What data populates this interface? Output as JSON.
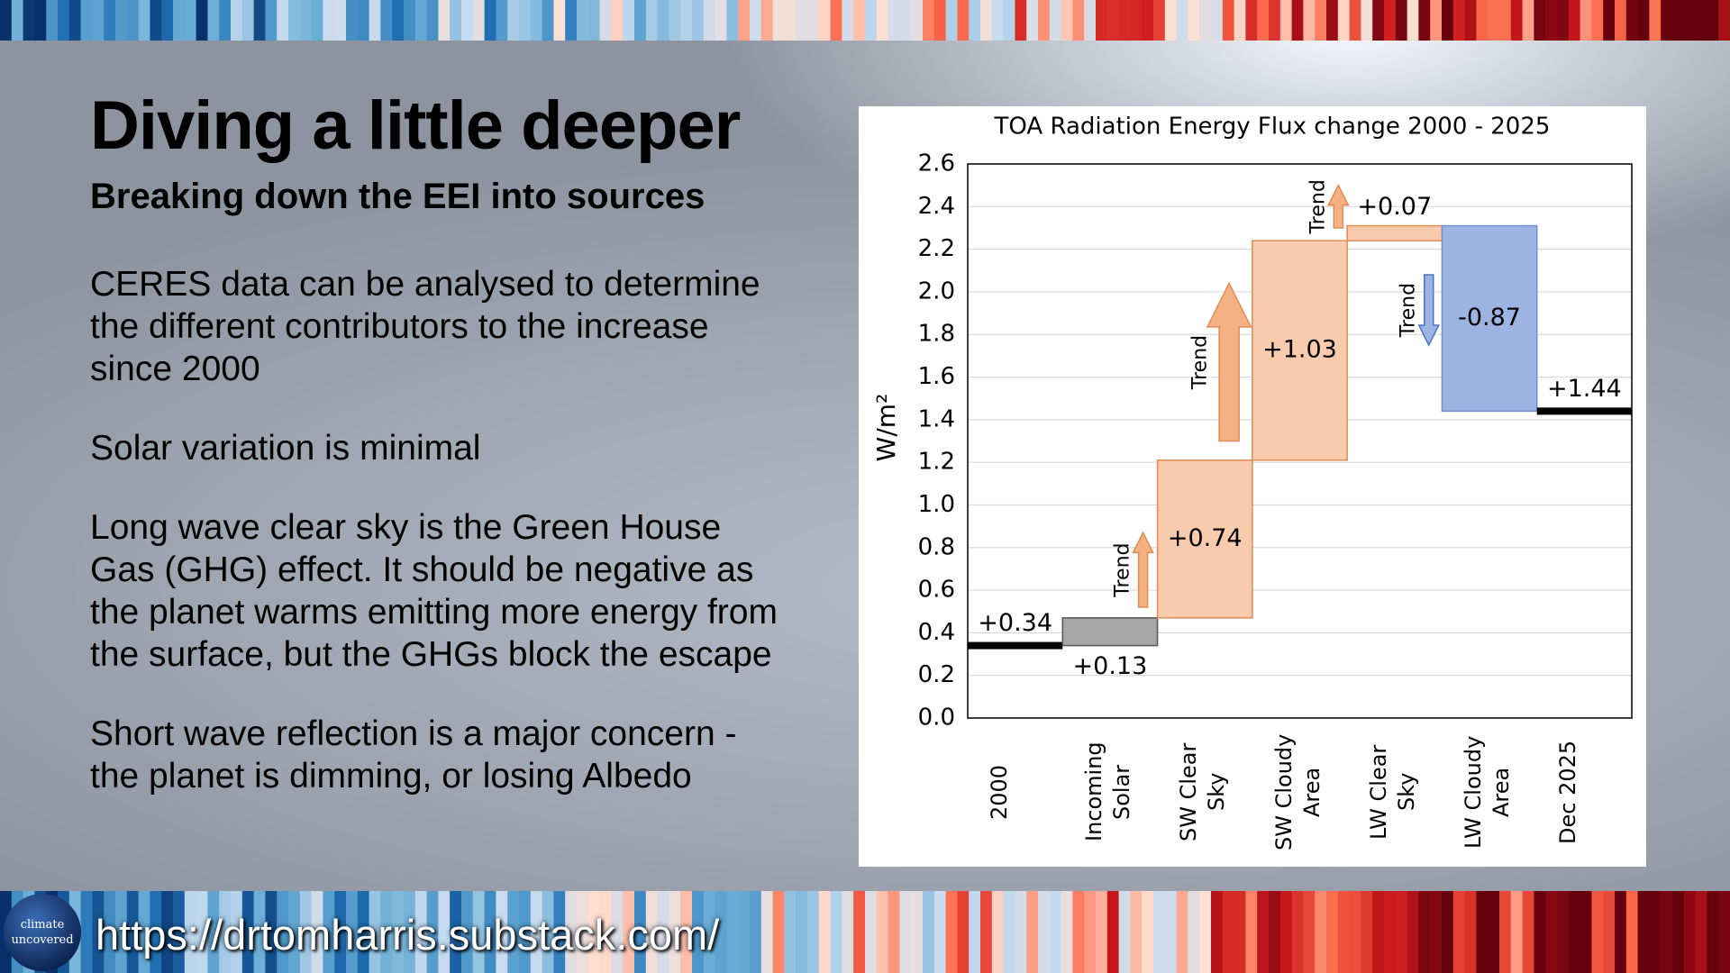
{
  "header": {
    "title": "Diving a little deeper",
    "subtitle": "Breaking down the EEI into sources"
  },
  "paragraphs": [
    "CERES data can be analysed to determine the different contributors to the increase since 2000",
    "Solar variation is minimal",
    "Long wave clear sky is the Green House Gas (GHG) effect. It should be negative as the planet warms emitting more energy from the surface, but the GHGs block the escape",
    "Short wave reflection is a major concern - the planet is dimming, or losing Albedo"
  ],
  "footer": {
    "logo": [
      "climate",
      "uncovered"
    ],
    "url": "https://drtomharris.substack.com/"
  },
  "chart_data": {
    "type": "waterfall",
    "title": "TOA Radiation Energy Flux change 2000 - 2025",
    "y_label": "W/m²",
    "categories": [
      "2000",
      "Incoming\nSolar",
      "SW Clear\nSky",
      "SW Cloudy\nArea",
      "LW Clear\nSky",
      "LW Cloudy\nArea",
      "Dec 2025"
    ],
    "measures": [
      "total",
      "relative",
      "relative",
      "relative",
      "relative",
      "relative",
      "total"
    ],
    "values": [
      0.34,
      0.13,
      0.74,
      1.03,
      0.07,
      -0.87,
      1.44
    ],
    "value_labels": [
      "+0.34",
      "+0.13",
      "+0.74",
      "+1.03",
      "+0.07",
      "-0.87",
      "+1.44"
    ],
    "colors": [
      "#000000",
      "#a6a6a6",
      "#f8cbad",
      "#f8cbad",
      "#f8cbad",
      "#9db4e2",
      "#000000"
    ],
    "ylim": [
      0,
      2.6
    ],
    "yticks": [
      {
        "value": 0,
        "label": "0.0"
      },
      0.2,
      0.4,
      0.6,
      0.8,
      {
        "value": 1,
        "label": "1.0"
      },
      1.2,
      1.4,
      1.6,
      1.8,
      {
        "value": 2,
        "label": "2.0"
      },
      2.2,
      2.4,
      2.6
    ],
    "grid": true,
    "annotations": [
      {
        "text": "Trend",
        "direction": "up",
        "color": "#f4b183"
      },
      {
        "text": "Trend",
        "direction": "up",
        "color": "#f4b183"
      },
      {
        "text": "Trend",
        "direction": "up",
        "color": "#f4b183"
      },
      {
        "text": "Trend",
        "direction": "down",
        "color": "#9db4e2"
      }
    ]
  }
}
